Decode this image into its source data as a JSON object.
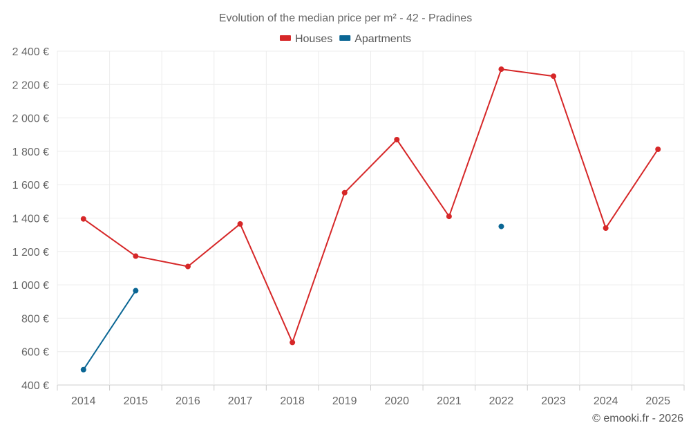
{
  "chart_data": {
    "type": "line",
    "title": "Evolution of the median price per m² - 42 - Pradines",
    "categories": [
      "2014",
      "2015",
      "2016",
      "2017",
      "2018",
      "2019",
      "2020",
      "2021",
      "2022",
      "2023",
      "2024",
      "2025"
    ],
    "ylim": [
      400,
      2400
    ],
    "yticks": [
      400,
      600,
      800,
      1000,
      1200,
      1400,
      1600,
      1800,
      2000,
      2200,
      2400
    ],
    "ytick_labels": [
      "400 €",
      "600 €",
      "800 €",
      "1 000 €",
      "1 200 €",
      "1 400 €",
      "1 600 €",
      "1 800 €",
      "2 000 €",
      "2 200 €",
      "2 400 €"
    ],
    "xlabel": "",
    "ylabel": "",
    "grid": true,
    "legend_position": "top-center",
    "series": [
      {
        "name": "Houses",
        "color": "#d62728",
        "values": [
          1395,
          1172,
          1110,
          1365,
          655,
          1552,
          1870,
          1410,
          2292,
          2250,
          1340,
          1812
        ]
      },
      {
        "name": "Apartments",
        "color": "#0a6694",
        "values": [
          492,
          965,
          null,
          null,
          null,
          null,
          null,
          null,
          1350,
          null,
          null,
          null
        ]
      }
    ]
  },
  "credit": "© emooki.fr - 2026"
}
